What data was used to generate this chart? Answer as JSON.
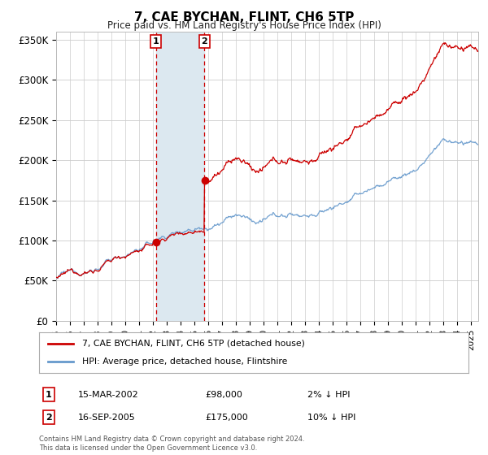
{
  "title": "7, CAE BYCHAN, FLINT, CH6 5TP",
  "subtitle": "Price paid vs. HM Land Registry's House Price Index (HPI)",
  "xlabel": "",
  "ylabel": "",
  "ylim": [
    0,
    360000
  ],
  "yticks": [
    0,
    50000,
    100000,
    150000,
    200000,
    250000,
    300000,
    350000
  ],
  "ytick_labels": [
    "£0",
    "£50K",
    "£100K",
    "£150K",
    "£200K",
    "£250K",
    "£300K",
    "£350K"
  ],
  "purchase1_date": 2002.21,
  "purchase1_price": 98000,
  "purchase1_label": "1",
  "purchase1_date_str": "15-MAR-2002",
  "purchase1_price_str": "£98,000",
  "purchase1_hpi": "2% ↓ HPI",
  "purchase2_date": 2005.71,
  "purchase2_price": 175000,
  "purchase2_label": "2",
  "purchase2_date_str": "16-SEP-2005",
  "purchase2_price_str": "£175,000",
  "purchase2_hpi": "10% ↓ HPI",
  "red_line_color": "#cc0000",
  "blue_line_color": "#6699cc",
  "shade_color": "#dce8f0",
  "vline_color": "#cc0000",
  "background_color": "#ffffff",
  "grid_color": "#cccccc",
  "legend_label_red": "7, CAE BYCHAN, FLINT, CH6 5TP (detached house)",
  "legend_label_blue": "HPI: Average price, detached house, Flintshire",
  "footer": "Contains HM Land Registry data © Crown copyright and database right 2024.\nThis data is licensed under the Open Government Licence v3.0.",
  "xstart": 1995.0,
  "xend": 2025.5
}
